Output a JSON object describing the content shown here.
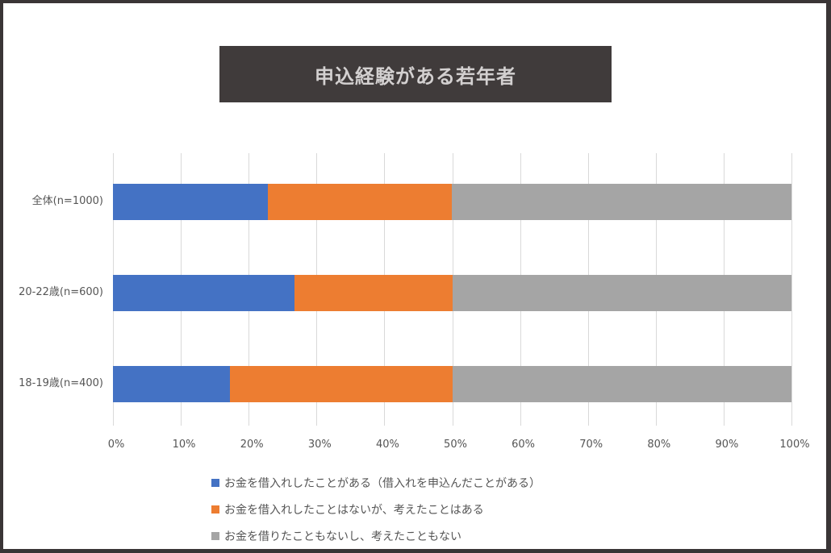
{
  "chart_data": {
    "type": "bar",
    "orientation": "horizontal",
    "stacked": "percent",
    "title": "申込経験がある若年者",
    "categories": [
      "全体(n=1000)",
      "20-22歳(n=600)",
      "18-19歳(n=400)"
    ],
    "series": [
      {
        "name": "お金を借入れしたことがある（借入れを申込んだことがある）",
        "color": "#4472c4",
        "values": [
          22.8,
          26.8,
          17.2
        ]
      },
      {
        "name": "お金を借入れしたことはないが、考えたことはある",
        "color": "#ed7d31",
        "values": [
          27.2,
          23.3,
          32.9
        ]
      },
      {
        "name": "お金を借りたこともないし、考えたこともない",
        "color": "#a5a5a5",
        "values": [
          50.0,
          49.9,
          49.9
        ]
      }
    ],
    "xlabel": "",
    "ylabel": "",
    "xlim": [
      0,
      100
    ],
    "xticks": [
      "0%",
      "10%",
      "20%",
      "30%",
      "40%",
      "50%",
      "60%",
      "70%",
      "80%",
      "90%",
      "100%"
    ],
    "grid": "vertical",
    "legend_position": "bottom"
  }
}
